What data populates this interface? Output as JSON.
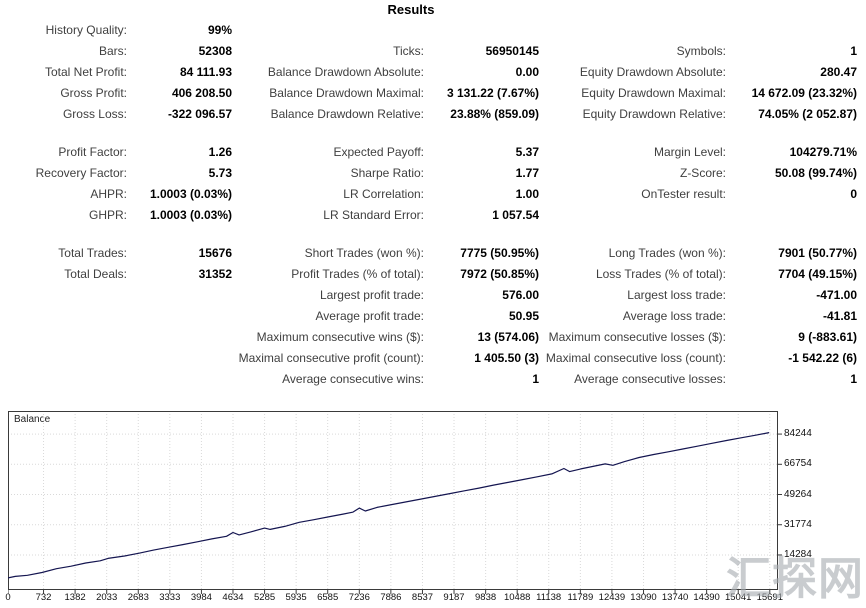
{
  "title": "Results",
  "watermark": "汇探网",
  "stats": {
    "sections": [
      {
        "rows": [
          [
            "History Quality:",
            "99%",
            "",
            "",
            "",
            ""
          ],
          [
            "Bars:",
            "52308",
            "Ticks:",
            "56950145",
            "Symbols:",
            "1"
          ],
          [
            "Total Net Profit:",
            "84 111.93",
            "Balance Drawdown Absolute:",
            "0.00",
            "Equity Drawdown Absolute:",
            "280.47"
          ],
          [
            "Gross Profit:",
            "406 208.50",
            "Balance Drawdown Maximal:",
            "3 131.22 (7.67%)",
            "Equity Drawdown Maximal:",
            "14 672.09 (23.32%)"
          ],
          [
            "Gross Loss:",
            "-322 096.57",
            "Balance Drawdown Relative:",
            "23.88% (859.09)",
            "Equity Drawdown Relative:",
            "74.05% (2 052.87)"
          ]
        ]
      },
      {
        "rows": [
          [
            "Profit Factor:",
            "1.26",
            "Expected Payoff:",
            "5.37",
            "Margin Level:",
            "104279.71%"
          ],
          [
            "Recovery Factor:",
            "5.73",
            "Sharpe Ratio:",
            "1.77",
            "Z-Score:",
            "50.08 (99.74%)"
          ],
          [
            "AHPR:",
            "1.0003 (0.03%)",
            "LR Correlation:",
            "1.00",
            "OnTester result:",
            "0"
          ],
          [
            "GHPR:",
            "1.0003 (0.03%)",
            "LR Standard Error:",
            "1 057.54",
            "",
            ""
          ]
        ]
      },
      {
        "rows": [
          [
            "Total Trades:",
            "15676",
            "Short Trades (won %):",
            "7775 (50.95%)",
            "Long Trades (won %):",
            "7901 (50.77%)"
          ],
          [
            "Total Deals:",
            "31352",
            "Profit Trades (% of total):",
            "7972 (50.85%)",
            "Loss Trades (% of total):",
            "7704 (49.15%)"
          ],
          [
            "",
            "",
            "Largest profit trade:",
            "576.00",
            "Largest loss trade:",
            "-471.00"
          ],
          [
            "",
            "",
            "Average profit trade:",
            "50.95",
            "Average loss trade:",
            "-41.81"
          ],
          [
            "",
            "",
            "Maximum consecutive wins ($):",
            "13 (574.06)",
            "Maximum consecutive losses ($):",
            "9 (-883.61)"
          ],
          [
            "",
            "",
            "Maximal consecutive profit (count):",
            "1 405.50 (3)",
            "Maximal consecutive loss (count):",
            "-1 542.22 (6)"
          ],
          [
            "",
            "",
            "Average consecutive wins:",
            "1",
            "Average consecutive losses:",
            "1"
          ]
        ]
      }
    ]
  },
  "chart_data": {
    "type": "line",
    "title": "Balance",
    "xlabel": "",
    "ylabel": "",
    "xlim": [
      0,
      15860
    ],
    "ylim": [
      -6000,
      97600
    ],
    "grid": true,
    "grid_color": "#d9d9d9",
    "border_color": "#3a3a3a",
    "x_ticks": [
      "0",
      "732",
      "1382",
      "2033",
      "2683",
      "3333",
      "3984",
      "4634",
      "5285",
      "5935",
      "6585",
      "7236",
      "7886",
      "8537",
      "9187",
      "9838",
      "10488",
      "11138",
      "11789",
      "12439",
      "13090",
      "13740",
      "14390",
      "15041",
      "15691"
    ],
    "y_ticks": [
      14284,
      31774,
      49264,
      66754,
      84244
    ],
    "series": [
      {
        "name": "Balance",
        "color": "#141550",
        "points": [
          [
            0,
            1000
          ],
          [
            150,
            1900
          ],
          [
            400,
            2500
          ],
          [
            700,
            4100
          ],
          [
            1000,
            6300
          ],
          [
            1300,
            7800
          ],
          [
            1600,
            9600
          ],
          [
            1900,
            10900
          ],
          [
            2060,
            12300
          ],
          [
            2400,
            13700
          ],
          [
            2700,
            15300
          ],
          [
            3000,
            17100
          ],
          [
            3300,
            18700
          ],
          [
            3600,
            20300
          ],
          [
            3900,
            21900
          ],
          [
            4200,
            23600
          ],
          [
            4500,
            25100
          ],
          [
            4634,
            27300
          ],
          [
            4760,
            25900
          ],
          [
            5000,
            27600
          ],
          [
            5285,
            29800
          ],
          [
            5400,
            29100
          ],
          [
            5700,
            30800
          ],
          [
            6000,
            33200
          ],
          [
            6300,
            34700
          ],
          [
            6600,
            36300
          ],
          [
            6900,
            37900
          ],
          [
            7100,
            39000
          ],
          [
            7236,
            41400
          ],
          [
            7360,
            39700
          ],
          [
            7600,
            41800
          ],
          [
            7900,
            43400
          ],
          [
            8200,
            45000
          ],
          [
            8500,
            46600
          ],
          [
            8800,
            48200
          ],
          [
            9100,
            49800
          ],
          [
            9400,
            51400
          ],
          [
            9700,
            53000
          ],
          [
            10000,
            54700
          ],
          [
            10300,
            56300
          ],
          [
            10600,
            57900
          ],
          [
            10900,
            59500
          ],
          [
            11200,
            61200
          ],
          [
            11450,
            64300
          ],
          [
            11570,
            62500
          ],
          [
            11800,
            64100
          ],
          [
            12100,
            65800
          ],
          [
            12300,
            67000
          ],
          [
            12460,
            66200
          ],
          [
            12700,
            68300
          ],
          [
            13000,
            70700
          ],
          [
            13300,
            72400
          ],
          [
            13600,
            74000
          ],
          [
            13900,
            75600
          ],
          [
            14200,
            77200
          ],
          [
            14500,
            78900
          ],
          [
            14800,
            80500
          ],
          [
            15100,
            82100
          ],
          [
            15400,
            83600
          ],
          [
            15676,
            85100
          ]
        ]
      }
    ]
  }
}
